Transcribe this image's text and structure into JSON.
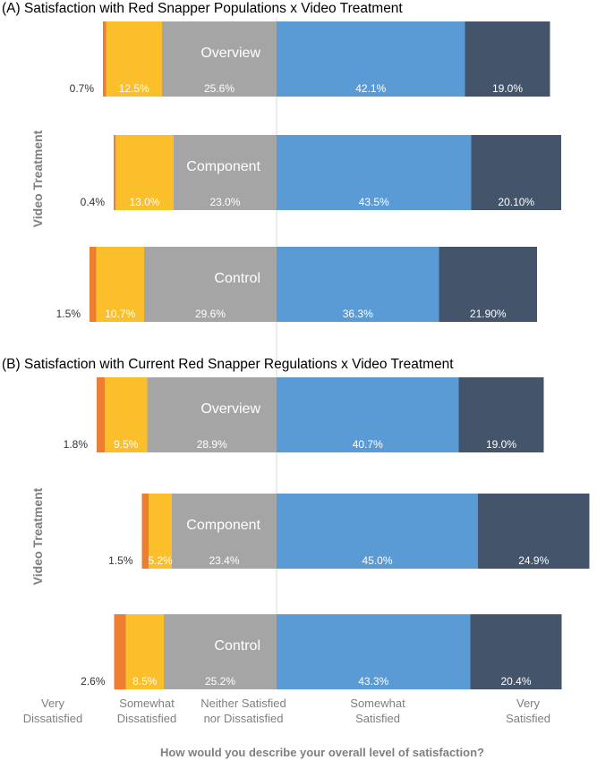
{
  "colors": {
    "very_dissatisfied": "#ED7D31",
    "somewhat_dissatisfied": "#FBBF2C",
    "neither": "#A5A5A5",
    "somewhat_satisfied": "#5B9BD5",
    "very_satisfied": "#44546A",
    "divider": "#D9D9D9",
    "text": "#333333",
    "axis_text": "#7F7F7F"
  },
  "x_axis_title": "How would you describe your overall level of satisfaction?",
  "category_labels": [
    [
      "Very",
      "Dissatisfied"
    ],
    [
      "Somewhat",
      "Dissatisfied"
    ],
    [
      "Neither Satisfied",
      "nor Dissatisfied"
    ],
    [
      "Somewhat",
      "Satisfied"
    ],
    [
      "Very",
      "Satisfied"
    ]
  ],
  "chart_data": [
    {
      "type": "bar",
      "stacked": true,
      "diverging": true,
      "title": "(A) Satisfaction with Red Snapper Populations x Video Treatment",
      "ylabel": "Video Treatment",
      "categories": [
        "Overview",
        "Component",
        "Control"
      ],
      "series": [
        {
          "name": "Very Dissatisfied",
          "values": [
            0.7,
            0.4,
            1.5
          ],
          "labels": [
            "0.7%",
            "0.4%",
            "1.5%"
          ]
        },
        {
          "name": "Somewhat Dissatisfied",
          "values": [
            12.5,
            13.0,
            10.7
          ],
          "labels": [
            "12.5%",
            "13.0%",
            "10.7%"
          ]
        },
        {
          "name": "Neither Satisfied nor Dissatisfied",
          "values": [
            25.6,
            23.0,
            29.6
          ],
          "labels": [
            "25.6%",
            "23.0%",
            "29.6%"
          ]
        },
        {
          "name": "Somewhat Satisfied",
          "values": [
            42.1,
            43.5,
            36.3
          ],
          "labels": [
            "42.1%",
            "43.5%",
            "36.3%"
          ]
        },
        {
          "name": "Very Satisfied",
          "values": [
            19.0,
            20.1,
            21.9
          ],
          "labels": [
            "19.0%",
            "20.10%",
            "21.90%"
          ]
        }
      ]
    },
    {
      "type": "bar",
      "stacked": true,
      "diverging": true,
      "title": "(B) Satisfaction with Current Red Snapper Regulations x Video Treatment",
      "ylabel": "Video Treatment",
      "categories": [
        "Overview",
        "Component",
        "Control"
      ],
      "series": [
        {
          "name": "Very Dissatisfied",
          "values": [
            1.8,
            1.5,
            2.6
          ],
          "labels": [
            "1.8%",
            "1.5%",
            "2.6%"
          ]
        },
        {
          "name": "Somewhat Dissatisfied",
          "values": [
            9.5,
            5.2,
            8.5
          ],
          "labels": [
            "9.5%",
            "5.2%",
            "8.5%"
          ]
        },
        {
          "name": "Neither Satisfied nor Dissatisfied",
          "values": [
            28.9,
            23.4,
            25.2
          ],
          "labels": [
            "28.9%",
            "23.4%",
            "25.2%"
          ]
        },
        {
          "name": "Somewhat Satisfied",
          "values": [
            40.7,
            45.0,
            43.3
          ],
          "labels": [
            "40.7%",
            "45.0%",
            "43.3%"
          ]
        },
        {
          "name": "Very Satisfied",
          "values": [
            19.0,
            24.9,
            20.4
          ],
          "labels": [
            "19.0%",
            "24.9%",
            "20.4%"
          ]
        }
      ]
    }
  ]
}
